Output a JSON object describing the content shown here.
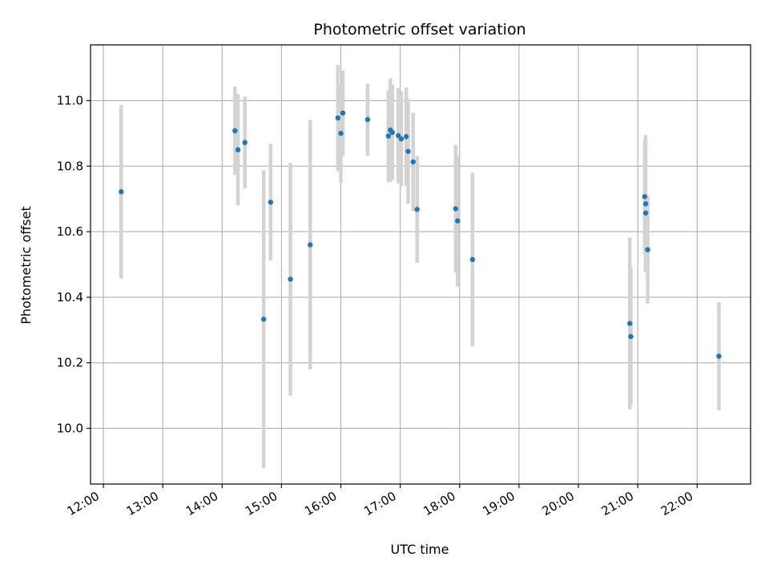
{
  "chart_data": {
    "type": "scatter",
    "title": "Photometric offset variation",
    "xlabel": "UTC time",
    "ylabel": "Photometric offset",
    "x_axis_type": "time",
    "xlim": [
      "11:47",
      "22:54"
    ],
    "ylim": [
      9.83,
      11.17
    ],
    "x_ticks": [
      "12:00",
      "13:00",
      "14:00",
      "15:00",
      "16:00",
      "17:00",
      "18:00",
      "19:00",
      "20:00",
      "21:00",
      "22:00"
    ],
    "y_ticks": [
      10.0,
      10.2,
      10.4,
      10.6,
      10.8,
      11.0
    ],
    "y_tick_labels": [
      "10.0",
      "10.2",
      "10.4",
      "10.6",
      "10.8",
      "11.0"
    ],
    "grid": true,
    "point_color": "#1f77b4",
    "errorbar_color": "#d3d3d3",
    "points": [
      {
        "x": "12:18",
        "y": 10.722,
        "err": 0.265
      },
      {
        "x": "14:13",
        "y": 10.908,
        "err": 0.135
      },
      {
        "x": "14:16",
        "y": 10.85,
        "err": 0.17
      },
      {
        "x": "14:23",
        "y": 10.872,
        "err": 0.14
      },
      {
        "x": "14:42",
        "y": 10.333,
        "err": 0.455
      },
      {
        "x": "14:49",
        "y": 10.69,
        "err": 0.178
      },
      {
        "x": "15:09",
        "y": 10.455,
        "err": 0.355
      },
      {
        "x": "15:29",
        "y": 10.56,
        "err": 0.38
      },
      {
        "x": "15:57",
        "y": 10.947,
        "err": 0.162
      },
      {
        "x": "16:00",
        "y": 10.9,
        "err": 0.15
      },
      {
        "x": "16:02",
        "y": 10.962,
        "err": 0.13
      },
      {
        "x": "16:27",
        "y": 10.942,
        "err": 0.11
      },
      {
        "x": "16:48",
        "y": 10.892,
        "err": 0.14
      },
      {
        "x": "16:50",
        "y": 10.91,
        "err": 0.158
      },
      {
        "x": "16:52",
        "y": 10.903,
        "err": 0.145
      },
      {
        "x": "16:58",
        "y": 10.893,
        "err": 0.145
      },
      {
        "x": "17:01",
        "y": 10.883,
        "err": 0.145
      },
      {
        "x": "17:06",
        "y": 10.89,
        "err": 0.15
      },
      {
        "x": "17:08",
        "y": 10.845,
        "err": 0.16
      },
      {
        "x": "17:13",
        "y": 10.813,
        "err": 0.15
      },
      {
        "x": "17:17",
        "y": 10.668,
        "err": 0.163
      },
      {
        "x": "17:56",
        "y": 10.67,
        "err": 0.195
      },
      {
        "x": "17:58",
        "y": 10.633,
        "err": 0.2
      },
      {
        "x": "18:13",
        "y": 10.515,
        "err": 0.265
      },
      {
        "x": "20:52",
        "y": 10.32,
        "err": 0.262
      },
      {
        "x": "20:53",
        "y": 10.28,
        "err": 0.21
      },
      {
        "x": "21:07",
        "y": 10.707,
        "err": 0.175
      },
      {
        "x": "21:08",
        "y": 10.685,
        "err": 0.21
      },
      {
        "x": "21:08",
        "y": 10.657,
        "err": 0.18
      },
      {
        "x": "21:10",
        "y": 10.545,
        "err": 0.165
      },
      {
        "x": "22:22",
        "y": 10.22,
        "err": 0.165
      }
    ]
  }
}
